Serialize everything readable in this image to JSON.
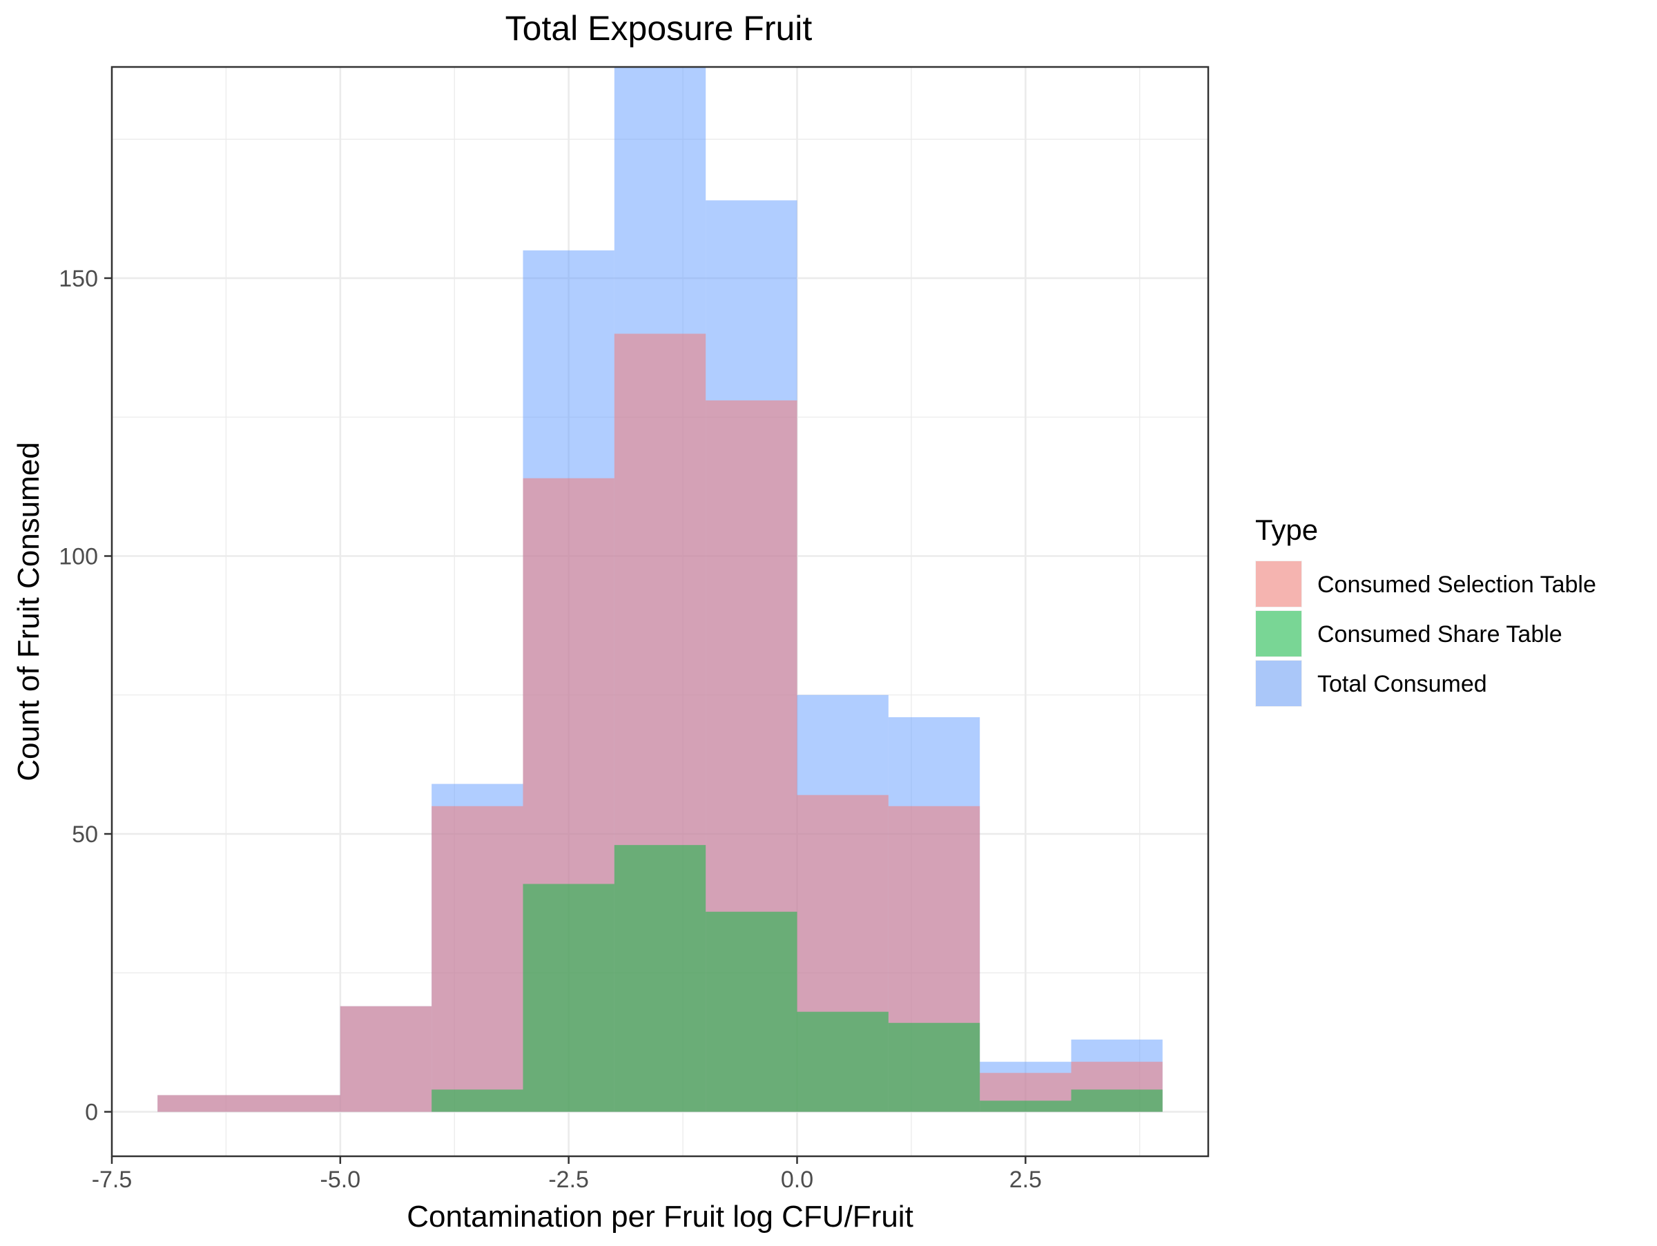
{
  "chart_data": {
    "type": "bar",
    "subtype": "overlaid-histogram",
    "title": "Total Exposure Fruit",
    "xlabel": "Contamination per Fruit log CFU/Fruit",
    "ylabel": "Count of Fruit Consumed",
    "xlim": [
      -7.5,
      4.5
    ],
    "ylim": [
      -8,
      188
    ],
    "x_ticks": [
      -7.5,
      -5.0,
      -2.5,
      0.0,
      2.5
    ],
    "x_tick_labels": [
      "-7.5",
      "-5.0",
      "-2.5",
      "0.0",
      "2.5"
    ],
    "y_ticks": [
      0,
      50,
      100,
      150
    ],
    "y_tick_labels": [
      "0",
      "50",
      "100",
      "150"
    ],
    "grid": true,
    "legend_position": "right",
    "legend_title": "Type",
    "bin_edges": [
      -7,
      -6,
      -5,
      -4,
      -3,
      -2,
      -1,
      0,
      1,
      2,
      3,
      4
    ],
    "series": [
      {
        "name": "Consumed Selection Table",
        "color": "#F8766D",
        "values": [
          3,
          3,
          19,
          55,
          114,
          140,
          128,
          57,
          55,
          7,
          9
        ]
      },
      {
        "name": "Consumed Share Table",
        "color": "#00BA38",
        "values": [
          0,
          0,
          0,
          4,
          41,
          48,
          36,
          18,
          16,
          2,
          4
        ]
      },
      {
        "name": "Total Consumed",
        "color": "#619CFF",
        "values": [
          3,
          3,
          19,
          59,
          155,
          188,
          164,
          75,
          71,
          9,
          13
        ]
      }
    ]
  }
}
